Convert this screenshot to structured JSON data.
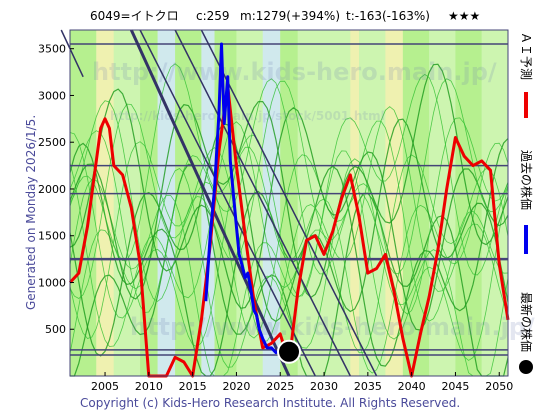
{
  "header": {
    "code": "6049=イトクロ",
    "c": "c:259",
    "m": "m:1279(+394%)",
    "t": "t:-163(-163%)",
    "stars": "★★★"
  },
  "side_left": "Generated on Monday 2026/1/5.",
  "legend": {
    "ai": "ＡＩ予測",
    "past": "過去の株価",
    "latest": "最新の株価"
  },
  "copyright": "Copyright (c) Kids-Hero Research Institute. All Rights Reserved.",
  "watermark": [
    "http://www.kids-hero.main.jp/",
    "http://kids-hero.main.jp/stock/5001.html",
    "http://www.kids-hero.main.jp/"
  ],
  "colors": {
    "ai": "#ee0000",
    "past": "#0000ee",
    "latest": "#000000",
    "band_light_green": "#ccf5b0",
    "band_green": "#b2ee8a",
    "band_yellow": "#f5f0b0",
    "band_blue": "#d0e6f8",
    "frame": "#444477",
    "trend": "#333366"
  },
  "chart_data": {
    "type": "line",
    "xlim": [
      2001,
      2051
    ],
    "ylim": [
      0,
      3700
    ],
    "xticks": [
      2005,
      2010,
      2015,
      2020,
      2025,
      2030,
      2035,
      2040,
      2045,
      2050
    ],
    "yticks": [
      500,
      1000,
      1500,
      2000,
      2500,
      3000,
      3500
    ],
    "hlines": [
      3550,
      2250,
      1950,
      1250,
      280,
      225
    ],
    "trendlines": [
      {
        "x": [
          2009,
          2029
        ],
        "y": [
          3700,
          0
        ]
      },
      {
        "x": [
          2013,
          2033
        ],
        "y": [
          3700,
          0
        ]
      },
      {
        "x": [
          2016,
          2036
        ],
        "y": [
          3700,
          0
        ]
      },
      {
        "x": [
          2000,
          2002.5
        ],
        "y": [
          3700,
          3200
        ]
      },
      {
        "x": [
          2008,
          2026
        ],
        "y": [
          3700,
          0
        ]
      }
    ],
    "series": [
      {
        "name": "ＡＩ予測",
        "key": "ai",
        "x": [
          2001,
          2002,
          2003,
          2004,
          2004.5,
          2005,
          2005.5,
          2006,
          2007,
          2008,
          2009,
          2010,
          2011,
          2012,
          2013,
          2014,
          2015,
          2016,
          2017,
          2018,
          2019,
          2020,
          2021,
          2022,
          2023,
          2024,
          2025,
          2026,
          2027,
          2028,
          2029,
          2030,
          2031,
          2032,
          2033,
          2034,
          2035,
          2036,
          2037,
          2038,
          2039,
          2040,
          2041,
          2042,
          2043,
          2044,
          2045,
          2046,
          2047,
          2048,
          2049,
          2050,
          2051
        ],
        "y": [
          1000,
          1100,
          1600,
          2300,
          2650,
          2750,
          2650,
          2250,
          2150,
          1800,
          1200,
          0,
          0,
          0,
          200,
          150,
          0,
          600,
          1400,
          2400,
          3100,
          2250,
          1500,
          800,
          300,
          350,
          450,
          150,
          900,
          1450,
          1500,
          1300,
          1550,
          1900,
          2150,
          1700,
          1100,
          1150,
          1300,
          900,
          400,
          0,
          450,
          850,
          1350,
          2000,
          2550,
          2350,
          2250,
          2300,
          2200,
          1200,
          600
        ]
      },
      {
        "name": "過去の株価",
        "key": "past",
        "x": [
          2016.5,
          2017,
          2017.5,
          2018,
          2018.3,
          2018.6,
          2019,
          2019.3,
          2019.6,
          2020,
          2020.3,
          2020.6,
          2021,
          2021.3,
          2021.6,
          2022,
          2022.3,
          2022.6,
          2023,
          2023.5,
          2024,
          2024.5,
          2025,
          2025.5,
          2026
        ],
        "y": [
          800,
          1500,
          2000,
          2800,
          3550,
          2700,
          3200,
          2300,
          2000,
          1600,
          1300,
          1200,
          1050,
          1100,
          950,
          700,
          650,
          500,
          400,
          300,
          300,
          250,
          270,
          240,
          259
        ]
      },
      {
        "name": "最新の株価",
        "key": "latest",
        "x": [
          2026
        ],
        "y": [
          259
        ]
      }
    ]
  }
}
